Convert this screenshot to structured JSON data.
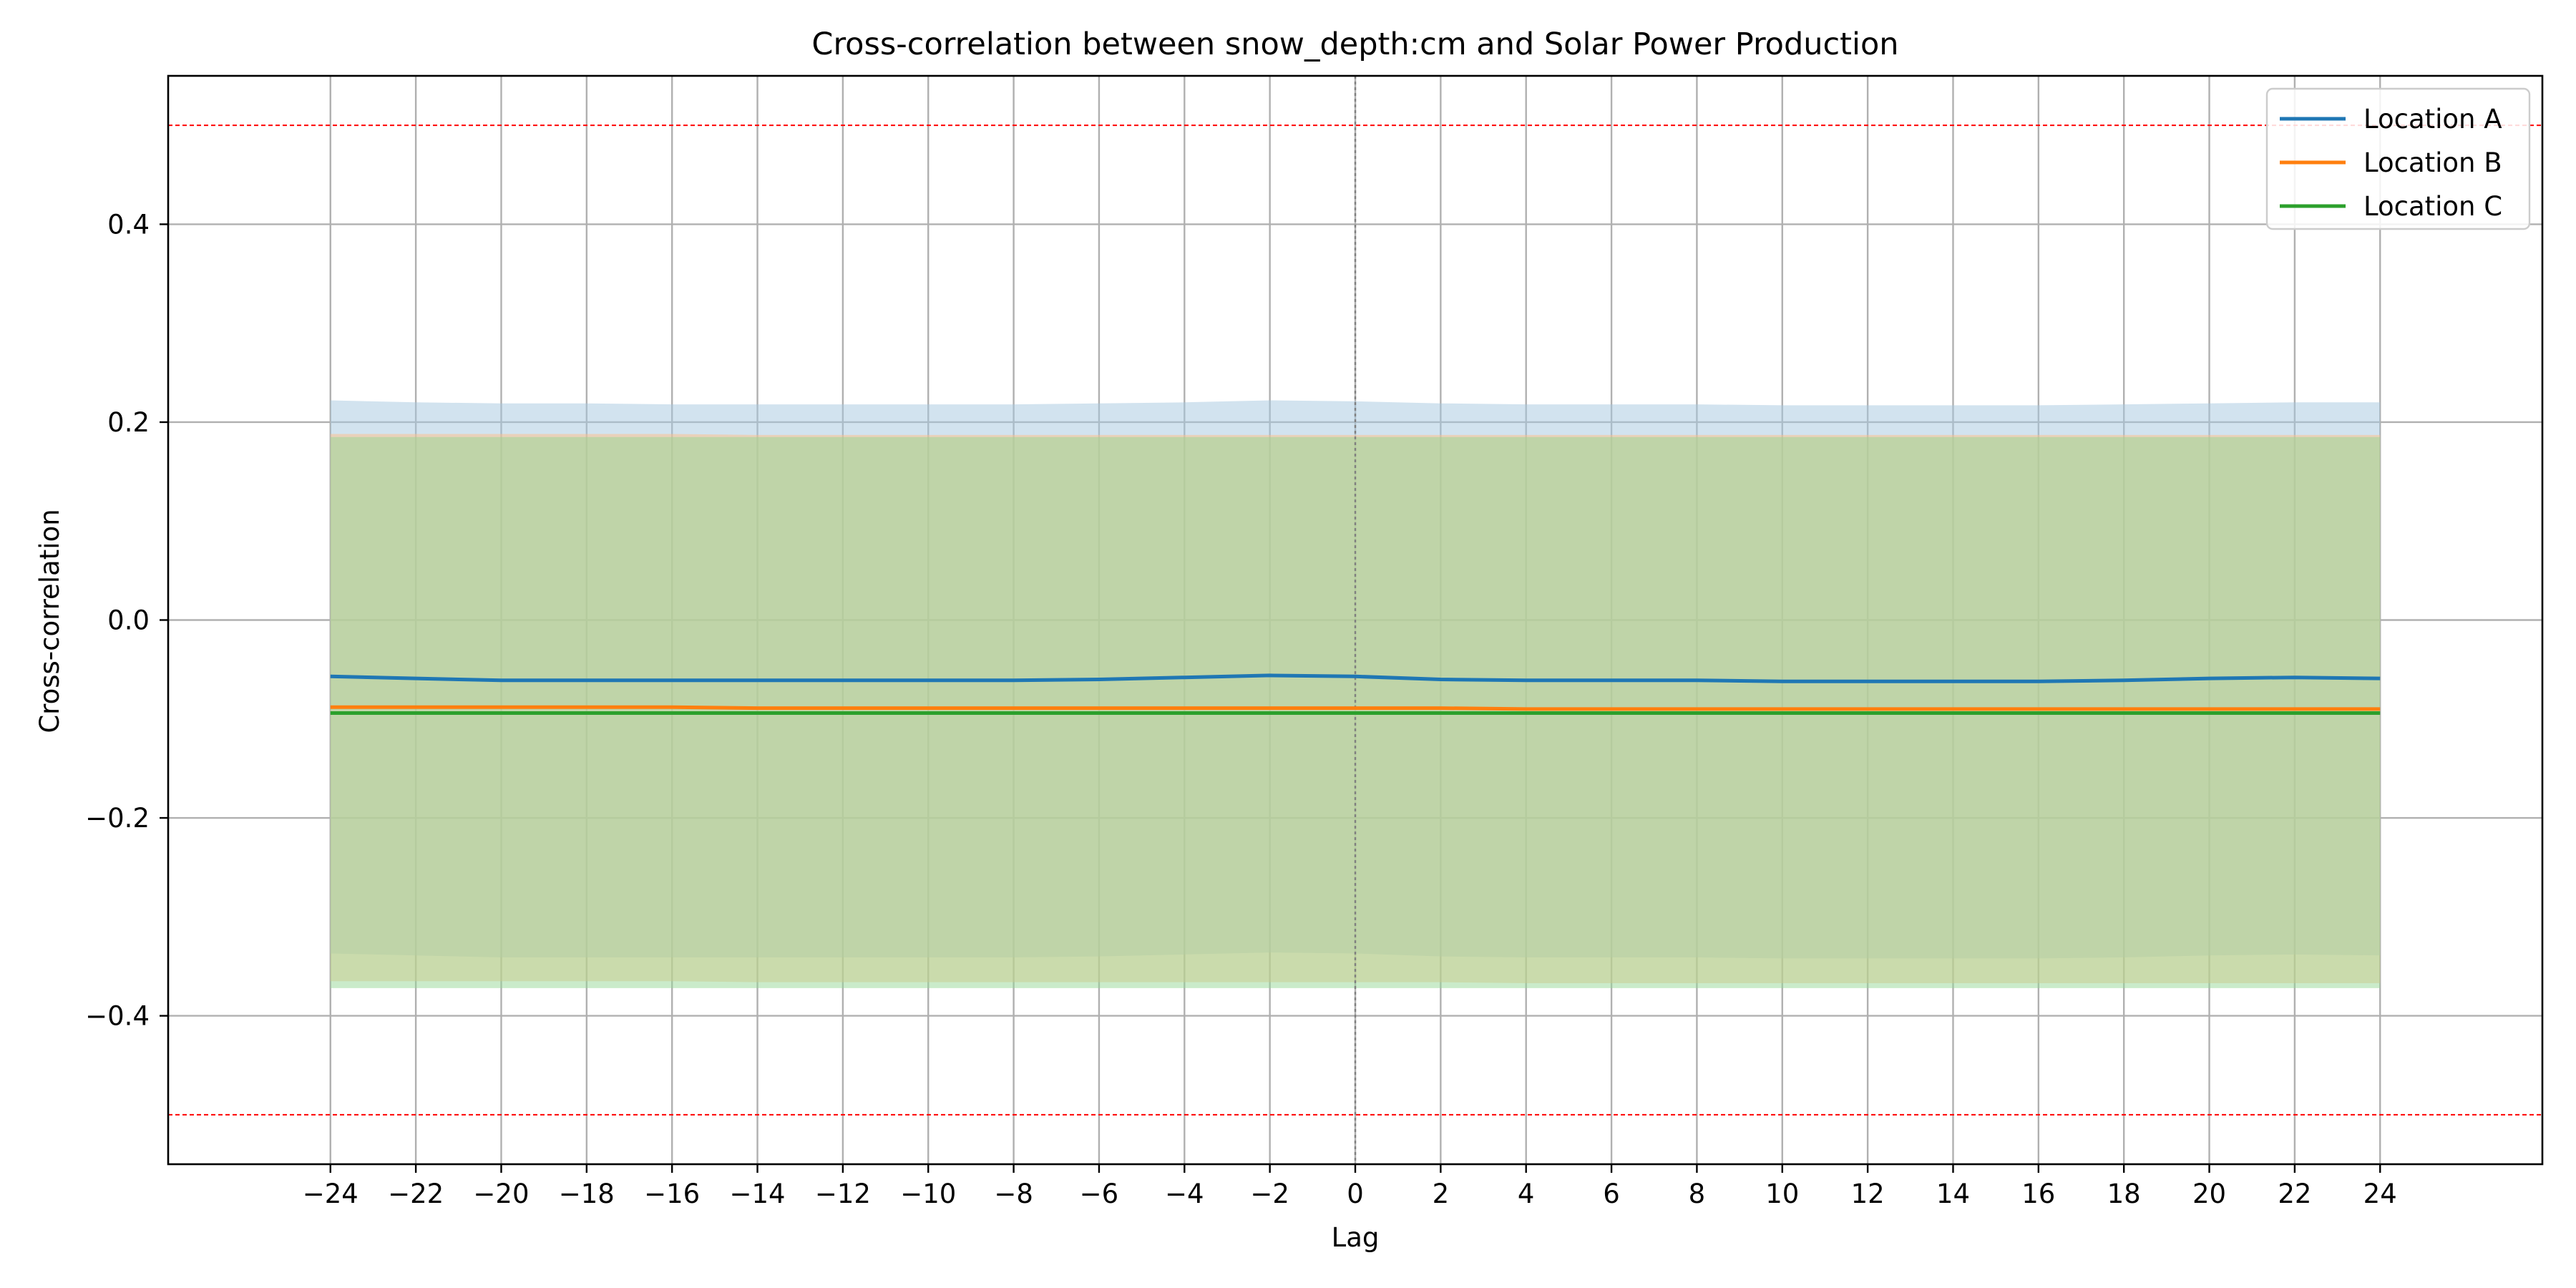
{
  "chart_data": {
    "type": "line",
    "title": "Cross-correlation between snow_depth:cm and Solar Power Production",
    "xlabel": "Lag",
    "ylabel": "Cross-correlation",
    "xlim": [
      -27.8,
      27.8
    ],
    "ylim": [
      -0.55,
      0.55
    ],
    "xticks": [
      -24,
      -22,
      -20,
      -18,
      -16,
      -14,
      -12,
      -10,
      -8,
      -6,
      -4,
      -2,
      0,
      2,
      4,
      6,
      8,
      10,
      12,
      14,
      16,
      18,
      20,
      22,
      24
    ],
    "yticks": [
      -0.4,
      -0.2,
      0.0,
      0.2,
      0.4
    ],
    "xtick_labels": [
      "−24",
      "−22",
      "−20",
      "−18",
      "−16",
      "−14",
      "−12",
      "−10",
      "−8",
      "−6",
      "−4",
      "−2",
      "0",
      "2",
      "4",
      "6",
      "8",
      "10",
      "12",
      "14",
      "16",
      "18",
      "20",
      "22",
      "24"
    ],
    "ytick_labels": [
      "−0.4",
      "−0.2",
      "0.0",
      "0.2",
      "0.4"
    ],
    "grid": true,
    "legend_position": "top-right",
    "reference_lines": {
      "horizontal_dashed_red": [
        0.5,
        -0.5
      ],
      "vertical_dotted_gray": [
        0
      ]
    },
    "x": [
      -24,
      -22,
      -20,
      -18,
      -16,
      -14,
      -12,
      -10,
      -8,
      -6,
      -4,
      -2,
      0,
      2,
      4,
      6,
      8,
      10,
      12,
      14,
      16,
      18,
      20,
      22,
      24
    ],
    "series": [
      {
        "name": "Location A",
        "color": "#1f77b4",
        "values": [
          -0.057,
          -0.059,
          -0.061,
          -0.061,
          -0.061,
          -0.061,
          -0.061,
          -0.061,
          -0.061,
          -0.06,
          -0.058,
          -0.056,
          -0.057,
          -0.06,
          -0.061,
          -0.061,
          -0.061,
          -0.062,
          -0.062,
          -0.062,
          -0.062,
          -0.061,
          -0.059,
          -0.058,
          -0.059
        ],
        "band_upper": [
          0.222,
          0.22,
          0.219,
          0.219,
          0.218,
          0.218,
          0.218,
          0.218,
          0.218,
          0.219,
          0.22,
          0.222,
          0.221,
          0.219,
          0.218,
          0.218,
          0.218,
          0.217,
          0.217,
          0.217,
          0.217,
          0.218,
          0.219,
          0.22,
          0.22
        ],
        "band_lower": [
          -0.337,
          -0.339,
          -0.341,
          -0.341,
          -0.341,
          -0.341,
          -0.341,
          -0.341,
          -0.341,
          -0.34,
          -0.338,
          -0.336,
          -0.337,
          -0.34,
          -0.341,
          -0.341,
          -0.341,
          -0.342,
          -0.342,
          -0.342,
          -0.342,
          -0.341,
          -0.339,
          -0.338,
          -0.339
        ],
        "band_color": "#a6c8e0"
      },
      {
        "name": "Location B",
        "color": "#ff7f0e",
        "values": [
          -0.088,
          -0.088,
          -0.088,
          -0.088,
          -0.088,
          -0.089,
          -0.089,
          -0.089,
          -0.089,
          -0.089,
          -0.089,
          -0.089,
          -0.089,
          -0.089,
          -0.09,
          -0.09,
          -0.09,
          -0.09,
          -0.09,
          -0.09,
          -0.09,
          -0.09,
          -0.09,
          -0.09,
          -0.09
        ],
        "band_upper": [
          0.188,
          0.188,
          0.188,
          0.188,
          0.188,
          0.187,
          0.187,
          0.187,
          0.187,
          0.187,
          0.187,
          0.187,
          0.187,
          0.187,
          0.187,
          0.187,
          0.187,
          0.187,
          0.187,
          0.187,
          0.187,
          0.187,
          0.187,
          0.187,
          0.187
        ],
        "band_lower": [
          -0.365,
          -0.365,
          -0.365,
          -0.365,
          -0.365,
          -0.366,
          -0.366,
          -0.366,
          -0.366,
          -0.366,
          -0.366,
          -0.366,
          -0.366,
          -0.366,
          -0.367,
          -0.367,
          -0.367,
          -0.367,
          -0.367,
          -0.367,
          -0.367,
          -0.367,
          -0.367,
          -0.367,
          -0.367
        ],
        "band_color": "#ffbf86"
      },
      {
        "name": "Location C",
        "color": "#2ca02c",
        "values": [
          -0.094,
          -0.094,
          -0.094,
          -0.094,
          -0.094,
          -0.094,
          -0.094,
          -0.094,
          -0.094,
          -0.094,
          -0.094,
          -0.094,
          -0.094,
          -0.094,
          -0.094,
          -0.094,
          -0.094,
          -0.094,
          -0.094,
          -0.094,
          -0.094,
          -0.094,
          -0.094,
          -0.094,
          -0.094
        ],
        "band_upper": [
          0.185,
          0.185,
          0.185,
          0.185,
          0.185,
          0.185,
          0.185,
          0.185,
          0.185,
          0.185,
          0.185,
          0.185,
          0.185,
          0.185,
          0.185,
          0.185,
          0.185,
          0.185,
          0.185,
          0.185,
          0.185,
          0.185,
          0.185,
          0.185,
          0.185
        ],
        "band_lower": [
          -0.372,
          -0.372,
          -0.372,
          -0.372,
          -0.372,
          -0.372,
          -0.372,
          -0.372,
          -0.372,
          -0.372,
          -0.372,
          -0.372,
          -0.372,
          -0.372,
          -0.372,
          -0.372,
          -0.372,
          -0.372,
          -0.372,
          -0.372,
          -0.372,
          -0.372,
          -0.372,
          -0.372,
          -0.372
        ],
        "band_color": "#96d896"
      }
    ]
  }
}
